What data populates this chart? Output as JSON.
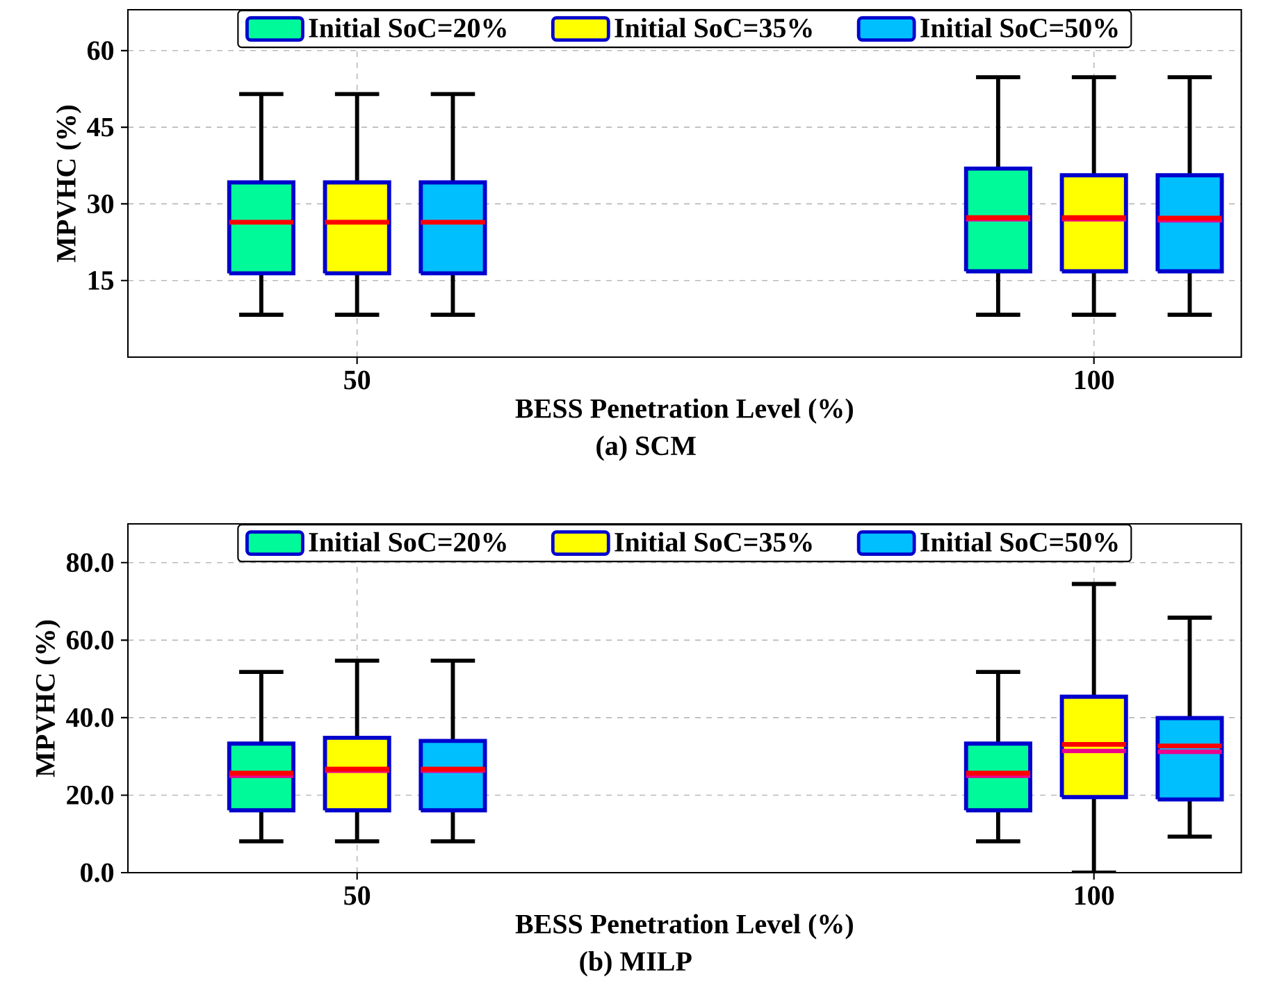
{
  "chart_data": [
    {
      "type": "box",
      "title": "(a) SCM",
      "xlabel": "BESS Penetration Level (%)",
      "ylabel": "MPVHC (%)",
      "categories": [
        "50",
        "100"
      ],
      "ylim": [
        0,
        68
      ],
      "yticks": [
        15,
        30,
        45,
        60
      ],
      "grid": true,
      "legend": "top",
      "series": [
        {
          "name": "Initial SoC=20%",
          "color": "#00fa9a",
          "boxes": [
            {
              "low": 8.3,
              "q1": 16.4,
              "median": 26.4,
              "q3": 34.2,
              "high": 51.5,
              "mean": 26.4
            },
            {
              "low": 8.3,
              "q1": 16.8,
              "median": 27.3,
              "q3": 36.9,
              "high": 54.8,
              "mean": 27.0
            }
          ]
        },
        {
          "name": "Initial SoC=35%",
          "color": "#ffff00",
          "boxes": [
            {
              "low": 8.3,
              "q1": 16.4,
              "median": 26.4,
              "q3": 34.2,
              "high": 51.5,
              "mean": 26.4
            },
            {
              "low": 8.3,
              "q1": 16.8,
              "median": 27.3,
              "q3": 35.6,
              "high": 54.8,
              "mean": 27.0
            }
          ]
        },
        {
          "name": "Initial SoC=50%",
          "color": "#00bfff",
          "boxes": [
            {
              "low": 8.3,
              "q1": 16.4,
              "median": 26.4,
              "q3": 34.2,
              "high": 51.5,
              "mean": 26.4
            },
            {
              "low": 8.3,
              "q1": 16.8,
              "median": 27.2,
              "q3": 35.6,
              "high": 54.8,
              "mean": 26.8
            }
          ]
        }
      ]
    },
    {
      "type": "box",
      "title": "(b) MILP",
      "xlabel": "BESS Penetration Level (%)",
      "ylabel": "MPVHC (%)",
      "categories": [
        "50",
        "100"
      ],
      "ylim": [
        0,
        90
      ],
      "yticks": [
        {
          "value": 0,
          "label": "0.0"
        },
        {
          "value": 20,
          "label": "20.0"
        },
        {
          "value": 40,
          "label": "40.0"
        },
        {
          "value": 60,
          "label": "60.0"
        },
        {
          "value": 80,
          "label": "80.0"
        }
      ],
      "grid": true,
      "legend": "top",
      "series": [
        {
          "name": "Initial SoC=20%",
          "color": "#00fa9a",
          "boxes": [
            {
              "low": 8.1,
              "q1": 16.1,
              "median": 25.7,
              "q3": 33.3,
              "high": 51.8,
              "mean": 25.0
            },
            {
              "low": 8.1,
              "q1": 16.1,
              "median": 25.7,
              "q3": 33.3,
              "high": 51.8,
              "mean": 25.0
            }
          ]
        },
        {
          "name": "Initial SoC=35%",
          "color": "#ffff00",
          "boxes": [
            {
              "low": 8.1,
              "q1": 16.1,
              "median": 26.7,
              "q3": 34.8,
              "high": 54.7,
              "mean": 26.3
            },
            {
              "low": 0,
              "q1": 19.5,
              "median": 33.1,
              "q3": 45.4,
              "high": 74.5,
              "mean": 31.4
            }
          ]
        },
        {
          "name": "Initial SoC=50%",
          "color": "#00bfff",
          "boxes": [
            {
              "low": 8.1,
              "q1": 16.1,
              "median": 26.7,
              "q3": 34.0,
              "high": 54.7,
              "mean": 26.3
            },
            {
              "low": 9.3,
              "q1": 18.9,
              "median": 32.7,
              "q3": 39.9,
              "high": 65.8,
              "mean": 31.2
            }
          ]
        }
      ]
    }
  ]
}
